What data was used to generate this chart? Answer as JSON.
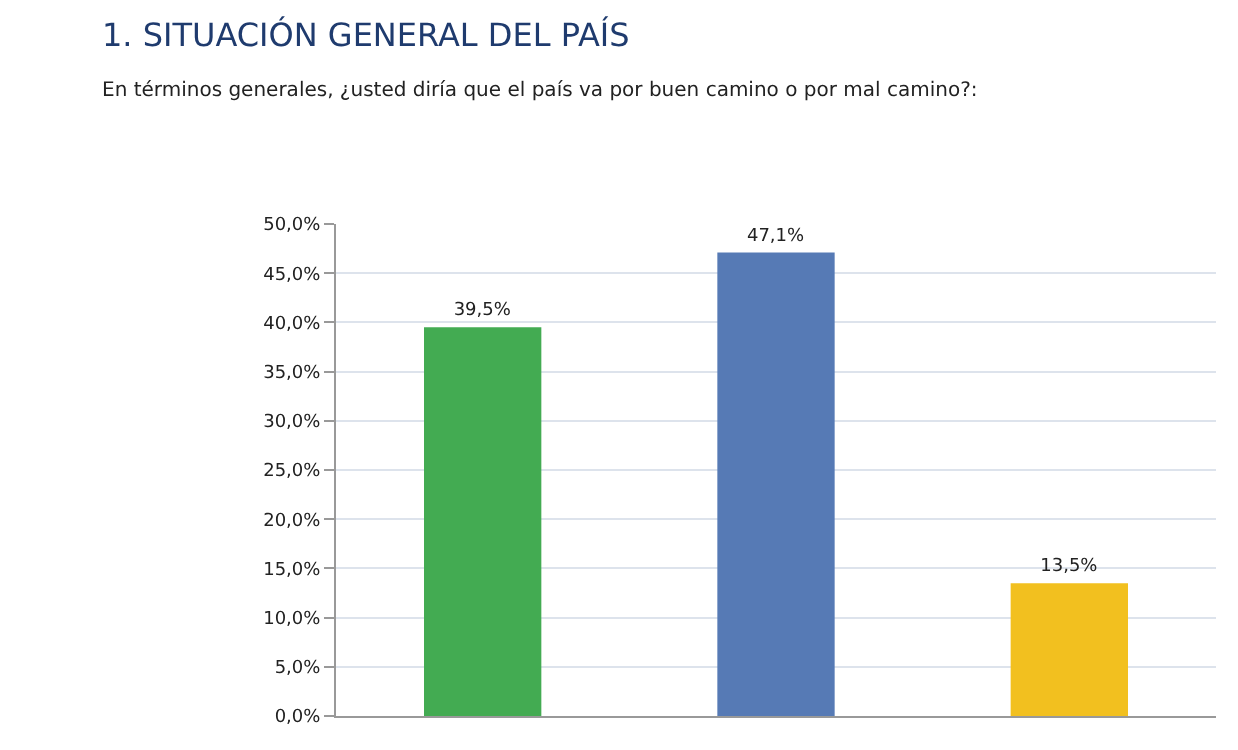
{
  "chart_data": {
    "type": "bar",
    "title": "1. SITUACIÓN GENERAL DEL PAÍS",
    "subtitle": "En términos generales, ¿usted diría que el país va por buen camino o por mal camino?:",
    "categories": [
      null,
      null,
      null
    ],
    "values": [
      39.5,
      47.1,
      13.5
    ],
    "colors": [
      "#43ab52",
      "#567ab5",
      "#f2c01f"
    ],
    "value_labels": [
      "39,5%",
      "47,1%",
      "13,5%"
    ],
    "ylim": [
      0,
      50
    ],
    "yticks": [
      {
        "value": 0,
        "label": "0,0%"
      },
      {
        "value": 5,
        "label": "5,0%"
      },
      {
        "value": 10,
        "label": "10,0%"
      },
      {
        "value": 15,
        "label": "15,0%"
      },
      {
        "value": 20,
        "label": "20,0%"
      },
      {
        "value": 25,
        "label": "25,0%"
      },
      {
        "value": 30,
        "label": "30,0%"
      },
      {
        "value": 35,
        "label": "35,0%"
      },
      {
        "value": 40,
        "label": "40,0%"
      },
      {
        "value": 45,
        "label": "45,0%"
      },
      {
        "value": 50,
        "label": "50,0%"
      }
    ],
    "grid": "y",
    "legend": false
  }
}
